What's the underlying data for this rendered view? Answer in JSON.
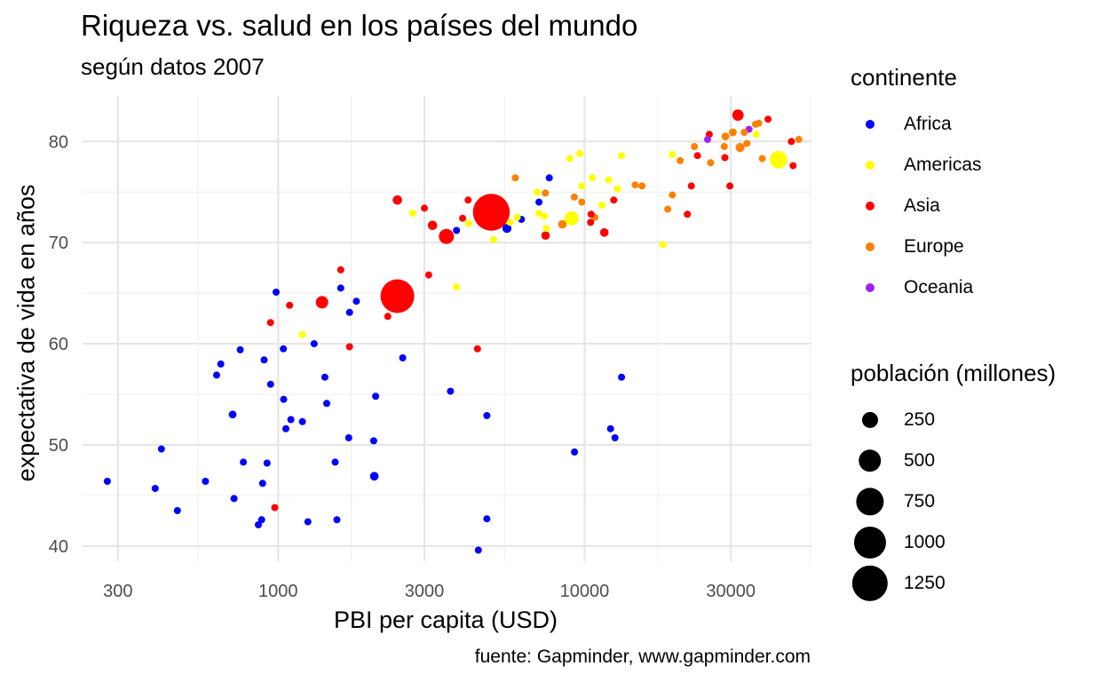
{
  "chart_data": {
    "type": "scatter",
    "title": "Riqueza vs. salud en los países del mundo",
    "subtitle": "según datos 2007",
    "caption": "fuente: Gapminder, www.gapminder.com",
    "xlabel": "PBI per capita (USD)",
    "ylabel": "expectativa de vida en años",
    "x_scale": "log10",
    "xlim": [
      230,
      55000
    ],
    "ylim": [
      38.5,
      84.5
    ],
    "x_ticks": [
      300,
      1000,
      3000,
      10000,
      30000
    ],
    "x_tick_labels": [
      "300",
      "1000",
      "3000",
      "10000",
      "30000"
    ],
    "y_ticks": [
      40,
      50,
      60,
      70,
      80
    ],
    "y_tick_labels": [
      "40",
      "50",
      "60",
      "70",
      "80"
    ],
    "grid": true,
    "legend_placement": "right",
    "color_legend": {
      "title": "continente",
      "entries": [
        {
          "name": "Africa",
          "color": "#0000ff"
        },
        {
          "name": "Americas",
          "color": "#ffff00"
        },
        {
          "name": "Asia",
          "color": "#ff0000"
        },
        {
          "name": "Europe",
          "color": "#ff8000"
        },
        {
          "name": "Oceania",
          "color": "#a020f0"
        }
      ]
    },
    "size_legend": {
      "title": "población (millones)",
      "values": [
        250,
        500,
        750,
        1000,
        1250
      ],
      "labels": [
        "250",
        "500",
        "750",
        "1000",
        "1250"
      ]
    },
    "series": [
      {
        "name": "Africa",
        "color": "#0000ff",
        "points": [
          {
            "x": 277,
            "y": 46.4,
            "pop": 35
          },
          {
            "x": 416,
            "y": 49.6,
            "pop": 5
          },
          {
            "x": 397,
            "y": 45.7,
            "pop": 5
          },
          {
            "x": 469,
            "y": 43.5,
            "pop": 8
          },
          {
            "x": 579,
            "y": 46.4,
            "pop": 5
          },
          {
            "x": 630,
            "y": 56.9,
            "pop": 15
          },
          {
            "x": 650,
            "y": 58.0,
            "pop": 10
          },
          {
            "x": 710,
            "y": 53.0,
            "pop": 60
          },
          {
            "x": 718,
            "y": 44.7,
            "pop": 6
          },
          {
            "x": 752,
            "y": 59.4,
            "pop": 5
          },
          {
            "x": 770,
            "y": 48.3,
            "pop": 18
          },
          {
            "x": 862,
            "y": 42.1,
            "pop": 20
          },
          {
            "x": 883,
            "y": 42.6,
            "pop": 8
          },
          {
            "x": 890,
            "y": 46.2,
            "pop": 10
          },
          {
            "x": 900,
            "y": 58.4,
            "pop": 12
          },
          {
            "x": 920,
            "y": 48.2,
            "pop": 10
          },
          {
            "x": 945,
            "y": 56.0,
            "pop": 15
          },
          {
            "x": 985,
            "y": 65.1,
            "pop": 5
          },
          {
            "x": 1040,
            "y": 59.5,
            "pop": 20
          },
          {
            "x": 1042,
            "y": 54.5,
            "pop": 15
          },
          {
            "x": 1060,
            "y": 51.6,
            "pop": 25
          },
          {
            "x": 1100,
            "y": 52.5,
            "pop": 40
          },
          {
            "x": 1200,
            "y": 52.3,
            "pop": 20
          },
          {
            "x": 1250,
            "y": 42.4,
            "pop": 15
          },
          {
            "x": 1310,
            "y": 60.0,
            "pop": 25
          },
          {
            "x": 1420,
            "y": 56.7,
            "pop": 10
          },
          {
            "x": 1440,
            "y": 54.1,
            "pop": 35
          },
          {
            "x": 1535,
            "y": 48.3,
            "pop": 20
          },
          {
            "x": 1555,
            "y": 42.6,
            "pop": 5
          },
          {
            "x": 1600,
            "y": 65.5,
            "pop": 3
          },
          {
            "x": 1700,
            "y": 50.7,
            "pop": 15
          },
          {
            "x": 1710,
            "y": 63.1,
            "pop": 20
          },
          {
            "x": 1800,
            "y": 64.2,
            "pop": 8
          },
          {
            "x": 2050,
            "y": 50.4,
            "pop": 20
          },
          {
            "x": 2060,
            "y": 46.9,
            "pop": 75
          },
          {
            "x": 2080,
            "y": 54.8,
            "pop": 3
          },
          {
            "x": 2550,
            "y": 58.6,
            "pop": 30
          },
          {
            "x": 3650,
            "y": 55.3,
            "pop": 8
          },
          {
            "x": 3820,
            "y": 71.2,
            "pop": 35
          },
          {
            "x": 4500,
            "y": 39.6,
            "pop": 5
          },
          {
            "x": 4800,
            "y": 52.9,
            "pop": 5
          },
          {
            "x": 4800,
            "y": 42.7,
            "pop": 12
          },
          {
            "x": 5580,
            "y": 71.4,
            "pop": 80
          },
          {
            "x": 6220,
            "y": 72.3,
            "pop": 30
          },
          {
            "x": 7100,
            "y": 74.0,
            "pop": 10
          },
          {
            "x": 7670,
            "y": 76.4,
            "pop": 3
          },
          {
            "x": 9270,
            "y": 49.3,
            "pop": 45
          },
          {
            "x": 12150,
            "y": 51.6,
            "pop": 3
          },
          {
            "x": 12570,
            "y": 50.7,
            "pop": 5
          },
          {
            "x": 13200,
            "y": 56.7,
            "pop": 5
          }
        ]
      },
      {
        "name": "Americas",
        "color": "#ffff00",
        "points": [
          {
            "x": 1200,
            "y": 60.9,
            "pop": 10
          },
          {
            "x": 2750,
            "y": 72.9,
            "pop": 5
          },
          {
            "x": 3820,
            "y": 65.6,
            "pop": 10
          },
          {
            "x": 4180,
            "y": 71.9,
            "pop": 5
          },
          {
            "x": 5050,
            "y": 70.3,
            "pop": 12
          },
          {
            "x": 5720,
            "y": 72.0,
            "pop": 15
          },
          {
            "x": 6030,
            "y": 72.5,
            "pop": 5
          },
          {
            "x": 7000,
            "y": 75.0,
            "pop": 8
          },
          {
            "x": 7100,
            "y": 72.9,
            "pop": 8
          },
          {
            "x": 7400,
            "y": 72.6,
            "pop": 12
          },
          {
            "x": 7500,
            "y": 71.4,
            "pop": 5
          },
          {
            "x": 8950,
            "y": 78.3,
            "pop": 12
          },
          {
            "x": 9070,
            "y": 72.4,
            "pop": 190
          },
          {
            "x": 9650,
            "y": 78.8,
            "pop": 4
          },
          {
            "x": 9800,
            "y": 75.6,
            "pop": 4
          },
          {
            "x": 10600,
            "y": 76.4,
            "pop": 4
          },
          {
            "x": 11400,
            "y": 73.7,
            "pop": 28
          },
          {
            "x": 11980,
            "y": 76.2,
            "pop": 45
          },
          {
            "x": 12800,
            "y": 75.3,
            "pop": 40
          },
          {
            "x": 13200,
            "y": 78.6,
            "pop": 4
          },
          {
            "x": 18000,
            "y": 69.8,
            "pop": 3
          },
          {
            "x": 19300,
            "y": 78.7,
            "pop": 4
          },
          {
            "x": 36300,
            "y": 80.7,
            "pop": 33
          },
          {
            "x": 42950,
            "y": 78.2,
            "pop": 300
          }
        ]
      },
      {
        "name": "Asia",
        "color": "#ff0000",
        "points": [
          {
            "x": 944,
            "y": 62.1,
            "pop": 30
          },
          {
            "x": 975,
            "y": 43.8,
            "pop": 30
          },
          {
            "x": 1090,
            "y": 63.8,
            "pop": 25
          },
          {
            "x": 1390,
            "y": 64.1,
            "pop": 150
          },
          {
            "x": 1600,
            "y": 67.3,
            "pop": 15
          },
          {
            "x": 1710,
            "y": 59.7,
            "pop": 10
          },
          {
            "x": 2280,
            "y": 62.7,
            "pop": 30
          },
          {
            "x": 2450,
            "y": 64.7,
            "pop": 1110
          },
          {
            "x": 2450,
            "y": 74.2,
            "pop": 85
          },
          {
            "x": 2600,
            "y": 65.5,
            "pop": 30
          },
          {
            "x": 3000,
            "y": 73.4,
            "pop": 5
          },
          {
            "x": 3100,
            "y": 66.8,
            "pop": 5
          },
          {
            "x": 3190,
            "y": 71.7,
            "pop": 85
          },
          {
            "x": 3540,
            "y": 70.6,
            "pop": 225
          },
          {
            "x": 4000,
            "y": 72.4,
            "pop": 30
          },
          {
            "x": 4170,
            "y": 74.2,
            "pop": 25
          },
          {
            "x": 4470,
            "y": 59.5,
            "pop": 30
          },
          {
            "x": 4960,
            "y": 73.0,
            "pop": 1320
          },
          {
            "x": 7460,
            "y": 70.7,
            "pop": 70
          },
          {
            "x": 10460,
            "y": 72.0,
            "pop": 5
          },
          {
            "x": 10500,
            "y": 72.8,
            "pop": 5
          },
          {
            "x": 11600,
            "y": 71.0,
            "pop": 70
          },
          {
            "x": 12450,
            "y": 74.2,
            "pop": 25
          },
          {
            "x": 21650,
            "y": 72.8,
            "pop": 28
          },
          {
            "x": 22300,
            "y": 75.6,
            "pop": 5
          },
          {
            "x": 23350,
            "y": 78.6,
            "pop": 25
          },
          {
            "x": 25520,
            "y": 80.7,
            "pop": 5
          },
          {
            "x": 28700,
            "y": 78.4,
            "pop": 25
          },
          {
            "x": 29800,
            "y": 75.6,
            "pop": 5
          },
          {
            "x": 31650,
            "y": 82.6,
            "pop": 127
          },
          {
            "x": 39700,
            "y": 82.2,
            "pop": 7
          },
          {
            "x": 47300,
            "y": 80.0,
            "pop": 5
          },
          {
            "x": 47900,
            "y": 77.6,
            "pop": 5
          }
        ]
      },
      {
        "name": "Europe",
        "color": "#ff8000",
        "points": [
          {
            "x": 5940,
            "y": 76.4,
            "pop": 5
          },
          {
            "x": 7450,
            "y": 74.9,
            "pop": 5
          },
          {
            "x": 8460,
            "y": 71.8,
            "pop": 70
          },
          {
            "x": 9260,
            "y": 74.5,
            "pop": 10
          },
          {
            "x": 9790,
            "y": 74.0,
            "pop": 20
          },
          {
            "x": 10810,
            "y": 72.5,
            "pop": 20
          },
          {
            "x": 14620,
            "y": 75.7,
            "pop": 20
          },
          {
            "x": 15390,
            "y": 75.6,
            "pop": 40
          },
          {
            "x": 18680,
            "y": 73.3,
            "pop": 12
          },
          {
            "x": 19330,
            "y": 74.7,
            "pop": 12
          },
          {
            "x": 20510,
            "y": 78.1,
            "pop": 20
          },
          {
            "x": 22830,
            "y": 79.5,
            "pop": 10
          },
          {
            "x": 25770,
            "y": 77.9,
            "pop": 5
          },
          {
            "x": 28570,
            "y": 79.5,
            "pop": 45
          },
          {
            "x": 28820,
            "y": 80.5,
            "pop": 60
          },
          {
            "x": 30470,
            "y": 80.9,
            "pop": 60
          },
          {
            "x": 32170,
            "y": 79.4,
            "pop": 80
          },
          {
            "x": 33200,
            "y": 80.9,
            "pop": 5
          },
          {
            "x": 33860,
            "y": 79.8,
            "pop": 5
          },
          {
            "x": 36130,
            "y": 81.7,
            "pop": 5
          },
          {
            "x": 37000,
            "y": 81.8,
            "pop": 8
          },
          {
            "x": 38000,
            "y": 78.3,
            "pop": 5
          },
          {
            "x": 50000,
            "y": 80.2,
            "pop": 5
          }
        ]
      },
      {
        "name": "Oceania",
        "color": "#a020f0",
        "points": [
          {
            "x": 25200,
            "y": 80.2,
            "pop": 4
          },
          {
            "x": 34400,
            "y": 81.2,
            "pop": 20
          }
        ]
      }
    ]
  }
}
